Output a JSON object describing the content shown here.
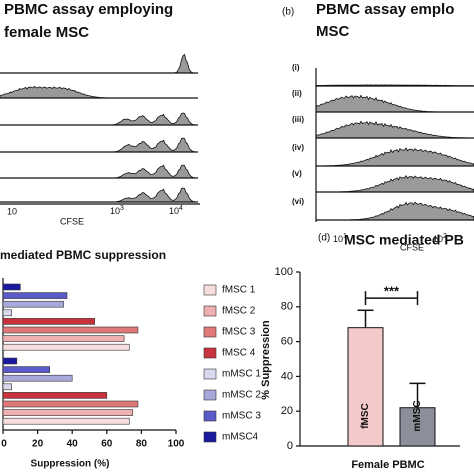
{
  "panel_a": {
    "title": [
      "PBMC assay employing",
      "female MSC"
    ],
    "xlabel": "CFSE",
    "xtick_labels": [
      "10",
      {
        "base": "10",
        "exp": "3"
      },
      {
        "base": "10",
        "exp": "4"
      }
    ]
  },
  "panel_b": {
    "label": "(b)",
    "title": [
      "PBMC assay emplo",
      "MSC"
    ],
    "row_labels": [
      "(i)",
      "(ii)",
      "(iii)",
      "(iv)",
      "(v)",
      "(vi)"
    ],
    "xlabel": "CFSE",
    "xtick_labels": [
      {
        "base": "10",
        "exp": "1"
      },
      {
        "base": "10",
        "exp": "2"
      }
    ]
  },
  "chart_data": [
    {
      "type": "bar",
      "orientation": "horizontal",
      "title": "mediated PBMC suppression",
      "xlabel": "Suppression (%)",
      "categories": [
        null,
        null
      ],
      "xlim": [
        0,
        100
      ],
      "xticks": [
        0,
        20,
        40,
        60,
        80,
        100
      ],
      "series": [
        {
          "name": "fMSC 1",
          "color": "#f6dede",
          "values": [
            73,
            73
          ]
        },
        {
          "name": "fMSC 2",
          "color": "#eeb0b0",
          "values": [
            70,
            75
          ]
        },
        {
          "name": "fMSC 3",
          "color": "#e07878",
          "values": [
            78,
            78
          ]
        },
        {
          "name": "fMSC 4",
          "color": "#c8323c",
          "values": [
            53,
            60
          ]
        },
        {
          "name": "mMSC 1",
          "color": "#d8d8ee",
          "values": [
            5,
            5
          ]
        },
        {
          "name": "mMSC 2",
          "color": "#a8a8dc",
          "values": [
            35,
            40
          ]
        },
        {
          "name": "mMSC 3",
          "color": "#5a5ac8",
          "values": [
            37,
            27
          ]
        },
        {
          "name": "mMSC4",
          "color": "#1a1aa0",
          "values": [
            10,
            8
          ]
        }
      ]
    },
    {
      "type": "bar",
      "orientation": "vertical",
      "label": "(d)",
      "title": "MSC mediated PB",
      "ylabel": "% Suppression",
      "categories": [
        "Female PBMC"
      ],
      "ylim": [
        0,
        100
      ],
      "yticks": [
        0,
        20,
        40,
        60,
        80,
        100
      ],
      "annotation": "***",
      "series": [
        {
          "name": "fMSC",
          "color": "#f3c9c9",
          "values": [
            68
          ],
          "errors": [
            10
          ]
        },
        {
          "name": "mMSC",
          "color": "#8c8f99",
          "values": [
            22
          ],
          "errors": [
            14
          ]
        }
      ]
    }
  ]
}
